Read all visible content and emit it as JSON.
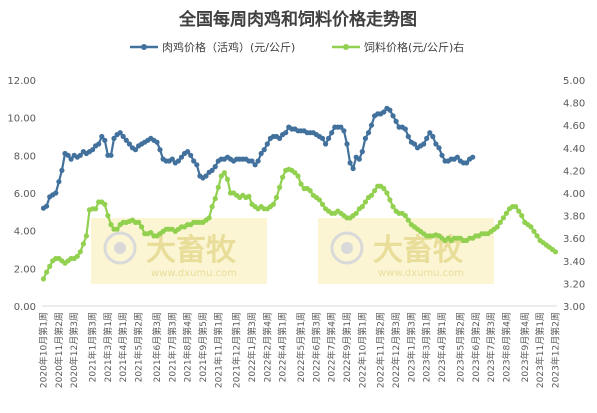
{
  "title": "全国每周肉鸡和饲料价格走势图",
  "watermark": {
    "brand": "大畜牧",
    "url": "www.dxumu.com"
  },
  "chart_data": {
    "type": "line",
    "title": "全国每周肉鸡和饲料价格走势图",
    "legend_position": "top",
    "grid": false,
    "y_left": {
      "min": 0,
      "max": 12,
      "step": 2,
      "tick_labels": [
        "0.00",
        "2.00",
        "4.00",
        "6.00",
        "8.00",
        "10.00",
        "12.00"
      ]
    },
    "y_right": {
      "min": 3.0,
      "max": 5.0,
      "step": 0.2,
      "tick_labels": [
        "3.00",
        "3.20",
        "3.40",
        "3.60",
        "3.80",
        "4.00",
        "4.20",
        "4.40",
        "4.60",
        "4.80",
        "5.00"
      ]
    },
    "x_tick_labels": [
      "2020年10月第1周",
      "2020年11月第2周",
      "2020年12月第3周",
      "2021年1月第3周",
      "2021年3月第1周",
      "2021年4月第1周",
      "2021年5月第2周",
      "2021年6月第3周",
      "2021年7月第3周",
      "2021年8月第4周",
      "2021年9月第5周",
      "2021年11月第1周",
      "2021年12月第1周",
      "2022年1月第3周",
      "2022年2月第4周",
      "2022年4月第1周",
      "2022年5月第1周",
      "2022年6月第3周",
      "2022年7月第4周",
      "2022年9月第1周",
      "2022年10月第1周",
      "2022年11月第2周",
      "2022年12月第3周",
      "2023年1月第3周",
      "2023年3月第1周",
      "2023年4月第1周",
      "2023年5月第2周",
      "2023年6月第2周",
      "2023年7月第3周",
      "2023年8月第4周",
      "2023年9月第4周",
      "2023年11月第1周",
      "2023年12月第2周"
    ],
    "x_count": 168,
    "series": [
      {
        "name": "肉鸡价格（活鸡）(元/公斤)",
        "axis": "left",
        "color": "#41719c",
        "anchors": [
          [
            0,
            5.2
          ],
          [
            1,
            5.3
          ],
          [
            2,
            5.8
          ],
          [
            3,
            5.9
          ],
          [
            4,
            6.0
          ],
          [
            5,
            6.6
          ],
          [
            6,
            7.2
          ],
          [
            7,
            8.1
          ],
          [
            8,
            8.0
          ],
          [
            9,
            7.8
          ],
          [
            10,
            8.0
          ],
          [
            11,
            7.9
          ],
          [
            12,
            8.0
          ],
          [
            13,
            8.2
          ],
          [
            14,
            8.1
          ],
          [
            15,
            8.2
          ],
          [
            16,
            8.3
          ],
          [
            17,
            8.5
          ],
          [
            18,
            8.6
          ],
          [
            19,
            9.0
          ],
          [
            20,
            8.8
          ],
          [
            21,
            8.0
          ],
          [
            22,
            8.0
          ],
          [
            23,
            8.9
          ],
          [
            24,
            9.1
          ],
          [
            25,
            9.2
          ],
          [
            26,
            9.0
          ],
          [
            27,
            8.8
          ],
          [
            28,
            8.6
          ],
          [
            29,
            8.4
          ],
          [
            30,
            8.3
          ],
          [
            31,
            8.5
          ],
          [
            32,
            8.6
          ],
          [
            33,
            8.7
          ],
          [
            34,
            8.8
          ],
          [
            35,
            8.9
          ],
          [
            36,
            8.8
          ],
          [
            37,
            8.7
          ],
          [
            38,
            8.3
          ],
          [
            39,
            7.8
          ],
          [
            40,
            7.7
          ],
          [
            41,
            7.7
          ],
          [
            42,
            7.8
          ],
          [
            43,
            7.6
          ],
          [
            44,
            7.7
          ],
          [
            45,
            7.9
          ],
          [
            46,
            8.1
          ],
          [
            47,
            8.2
          ],
          [
            48,
            8.0
          ],
          [
            49,
            7.7
          ],
          [
            50,
            7.5
          ],
          [
            51,
            6.9
          ],
          [
            52,
            6.8
          ],
          [
            53,
            6.9
          ],
          [
            54,
            7.1
          ],
          [
            55,
            7.2
          ],
          [
            56,
            7.4
          ],
          [
            57,
            7.7
          ],
          [
            58,
            7.8
          ],
          [
            59,
            7.8
          ],
          [
            60,
            7.9
          ],
          [
            61,
            7.8
          ],
          [
            62,
            7.7
          ],
          [
            63,
            7.8
          ],
          [
            64,
            7.8
          ],
          [
            65,
            7.8
          ],
          [
            66,
            7.8
          ],
          [
            67,
            7.7
          ],
          [
            68,
            7.7
          ],
          [
            69,
            7.5
          ],
          [
            70,
            7.7
          ],
          [
            71,
            8.1
          ],
          [
            72,
            8.3
          ],
          [
            73,
            8.6
          ],
          [
            74,
            8.9
          ],
          [
            75,
            9.0
          ],
          [
            76,
            9.0
          ],
          [
            77,
            8.9
          ],
          [
            78,
            9.1
          ],
          [
            79,
            9.2
          ],
          [
            80,
            9.5
          ],
          [
            81,
            9.4
          ],
          [
            82,
            9.4
          ],
          [
            83,
            9.3
          ],
          [
            84,
            9.3
          ],
          [
            85,
            9.3
          ],
          [
            86,
            9.2
          ],
          [
            87,
            9.2
          ],
          [
            88,
            9.2
          ],
          [
            89,
            9.1
          ],
          [
            90,
            9.0
          ],
          [
            91,
            8.9
          ],
          [
            92,
            8.6
          ],
          [
            93,
            8.9
          ],
          [
            94,
            9.2
          ],
          [
            95,
            9.5
          ],
          [
            96,
            9.5
          ],
          [
            97,
            9.5
          ],
          [
            98,
            9.3
          ],
          [
            99,
            8.6
          ],
          [
            100,
            7.6
          ],
          [
            101,
            7.3
          ],
          [
            102,
            7.9
          ],
          [
            103,
            7.8
          ],
          [
            104,
            8.2
          ],
          [
            105,
            8.9
          ],
          [
            106,
            9.2
          ],
          [
            107,
            9.6
          ],
          [
            108,
            10.1
          ],
          [
            109,
            10.2
          ],
          [
            110,
            10.2
          ],
          [
            111,
            10.3
          ],
          [
            112,
            10.5
          ],
          [
            113,
            10.4
          ],
          [
            114,
            10.1
          ],
          [
            115,
            9.8
          ],
          [
            116,
            9.5
          ],
          [
            117,
            9.5
          ],
          [
            118,
            9.4
          ],
          [
            119,
            9.0
          ],
          [
            120,
            8.7
          ],
          [
            121,
            8.6
          ],
          [
            122,
            8.4
          ],
          [
            123,
            8.5
          ],
          [
            124,
            8.6
          ],
          [
            125,
            8.9
          ],
          [
            126,
            9.2
          ],
          [
            127,
            9.0
          ],
          [
            128,
            8.6
          ],
          [
            129,
            8.4
          ],
          [
            130,
            8.0
          ],
          [
            131,
            7.7
          ],
          [
            132,
            7.7
          ],
          [
            133,
            7.8
          ],
          [
            134,
            7.8
          ],
          [
            135,
            7.9
          ],
          [
            136,
            7.7
          ],
          [
            137,
            7.6
          ],
          [
            138,
            7.6
          ],
          [
            139,
            7.8
          ],
          [
            140,
            7.9
          ]
        ]
      },
      {
        "name": "饲料价格(元/公斤)右",
        "axis": "right",
        "color": "#92d050",
        "anchors": [
          [
            0,
            3.24
          ],
          [
            1,
            3.3
          ],
          [
            2,
            3.35
          ],
          [
            3,
            3.4
          ],
          [
            4,
            3.42
          ],
          [
            5,
            3.42
          ],
          [
            6,
            3.4
          ],
          [
            7,
            3.38
          ],
          [
            8,
            3.4
          ],
          [
            9,
            3.42
          ],
          [
            10,
            3.42
          ],
          [
            11,
            3.44
          ],
          [
            12,
            3.48
          ],
          [
            13,
            3.55
          ],
          [
            14,
            3.62
          ],
          [
            15,
            3.85
          ],
          [
            16,
            3.86
          ],
          [
            17,
            3.86
          ],
          [
            18,
            3.92
          ],
          [
            19,
            3.92
          ],
          [
            20,
            3.9
          ],
          [
            21,
            3.8
          ],
          [
            22,
            3.72
          ],
          [
            23,
            3.68
          ],
          [
            24,
            3.68
          ],
          [
            25,
            3.72
          ],
          [
            26,
            3.74
          ],
          [
            27,
            3.74
          ],
          [
            28,
            3.75
          ],
          [
            29,
            3.76
          ],
          [
            30,
            3.74
          ],
          [
            31,
            3.74
          ],
          [
            32,
            3.7
          ],
          [
            33,
            3.64
          ],
          [
            34,
            3.64
          ],
          [
            35,
            3.65
          ],
          [
            36,
            3.62
          ],
          [
            37,
            3.62
          ],
          [
            38,
            3.64
          ],
          [
            39,
            3.66
          ],
          [
            40,
            3.68
          ],
          [
            41,
            3.68
          ],
          [
            42,
            3.68
          ],
          [
            43,
            3.66
          ],
          [
            44,
            3.68
          ],
          [
            45,
            3.7
          ],
          [
            46,
            3.7
          ],
          [
            47,
            3.72
          ],
          [
            48,
            3.72
          ],
          [
            49,
            3.74
          ],
          [
            50,
            3.74
          ],
          [
            51,
            3.74
          ],
          [
            52,
            3.74
          ],
          [
            53,
            3.76
          ],
          [
            54,
            3.78
          ],
          [
            55,
            3.88
          ],
          [
            56,
            3.95
          ],
          [
            57,
            4.05
          ],
          [
            58,
            4.15
          ],
          [
            59,
            4.18
          ],
          [
            60,
            4.12
          ],
          [
            61,
            4.0
          ],
          [
            62,
            4.0
          ],
          [
            63,
            3.98
          ],
          [
            64,
            3.96
          ],
          [
            65,
            3.98
          ],
          [
            66,
            3.96
          ],
          [
            67,
            3.97
          ],
          [
            68,
            3.9
          ],
          [
            69,
            3.88
          ],
          [
            70,
            3.86
          ],
          [
            71,
            3.88
          ],
          [
            72,
            3.86
          ],
          [
            73,
            3.86
          ],
          [
            74,
            3.88
          ],
          [
            75,
            3.9
          ],
          [
            76,
            3.96
          ],
          [
            77,
            4.05
          ],
          [
            78,
            4.14
          ],
          [
            79,
            4.2
          ],
          [
            80,
            4.21
          ],
          [
            81,
            4.2
          ],
          [
            82,
            4.18
          ],
          [
            83,
            4.15
          ],
          [
            84,
            4.08
          ],
          [
            85,
            4.04
          ],
          [
            86,
            4.04
          ],
          [
            87,
            4.02
          ],
          [
            88,
            3.98
          ],
          [
            89,
            3.96
          ],
          [
            90,
            3.94
          ],
          [
            91,
            3.9
          ],
          [
            92,
            3.86
          ],
          [
            93,
            3.84
          ],
          [
            94,
            3.82
          ],
          [
            95,
            3.82
          ],
          [
            96,
            3.84
          ],
          [
            97,
            3.82
          ],
          [
            98,
            3.8
          ],
          [
            99,
            3.78
          ],
          [
            100,
            3.78
          ],
          [
            101,
            3.8
          ],
          [
            102,
            3.82
          ],
          [
            103,
            3.86
          ],
          [
            104,
            3.88
          ],
          [
            105,
            3.92
          ],
          [
            106,
            3.96
          ],
          [
            107,
            3.98
          ],
          [
            108,
            4.02
          ],
          [
            109,
            4.06
          ],
          [
            110,
            4.06
          ],
          [
            111,
            4.04
          ],
          [
            112,
            4.0
          ],
          [
            113,
            3.94
          ],
          [
            114,
            3.88
          ],
          [
            115,
            3.84
          ],
          [
            116,
            3.82
          ],
          [
            117,
            3.82
          ],
          [
            118,
            3.8
          ],
          [
            119,
            3.76
          ],
          [
            120,
            3.72
          ],
          [
            121,
            3.7
          ],
          [
            122,
            3.68
          ],
          [
            123,
            3.66
          ],
          [
            124,
            3.64
          ],
          [
            125,
            3.62
          ],
          [
            126,
            3.62
          ],
          [
            127,
            3.62
          ],
          [
            128,
            3.63
          ],
          [
            129,
            3.62
          ],
          [
            130,
            3.6
          ],
          [
            131,
            3.58
          ],
          [
            132,
            3.6
          ],
          [
            133,
            3.58
          ],
          [
            134,
            3.6
          ],
          [
            135,
            3.6
          ],
          [
            136,
            3.6
          ],
          [
            137,
            3.58
          ],
          [
            138,
            3.58
          ],
          [
            139,
            3.6
          ],
          [
            140,
            3.6
          ],
          [
            141,
            3.62
          ],
          [
            142,
            3.62
          ],
          [
            143,
            3.64
          ],
          [
            144,
            3.64
          ],
          [
            145,
            3.64
          ],
          [
            146,
            3.66
          ],
          [
            147,
            3.68
          ],
          [
            148,
            3.7
          ],
          [
            149,
            3.74
          ],
          [
            150,
            3.78
          ],
          [
            151,
            3.82
          ],
          [
            152,
            3.86
          ],
          [
            153,
            3.88
          ],
          [
            154,
            3.88
          ],
          [
            155,
            3.84
          ],
          [
            156,
            3.8
          ],
          [
            157,
            3.74
          ],
          [
            158,
            3.72
          ],
          [
            159,
            3.7
          ],
          [
            160,
            3.66
          ],
          [
            161,
            3.62
          ],
          [
            162,
            3.58
          ],
          [
            163,
            3.56
          ],
          [
            164,
            3.54
          ],
          [
            165,
            3.52
          ],
          [
            166,
            3.5
          ],
          [
            167,
            3.48
          ]
        ]
      }
    ]
  }
}
